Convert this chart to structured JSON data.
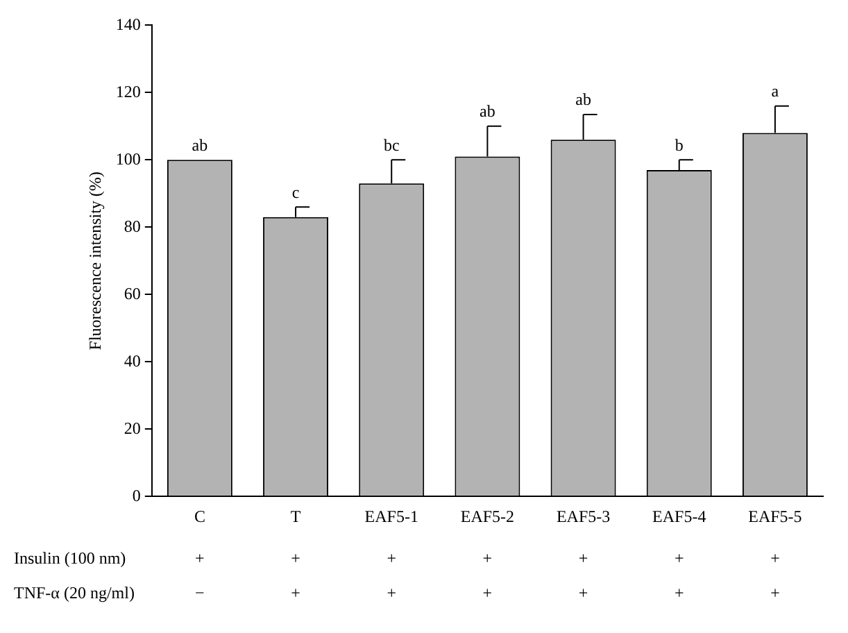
{
  "chart_data": {
    "type": "bar",
    "ylabel": "Fluorescence intensity (%)",
    "categories": [
      "C",
      "T",
      "EAF5-1",
      "EAF5-2",
      "EAF5-3",
      "EAF5-4",
      "EAF5-5"
    ],
    "values": [
      100,
      83,
      93,
      101,
      106,
      97,
      108
    ],
    "errors": [
      null,
      [
        83,
        86
      ],
      [
        93,
        100
      ],
      [
        101,
        110
      ],
      [
        106,
        113.5
      ],
      [
        97,
        100
      ],
      [
        108,
        116
      ]
    ],
    "color": "#b3b3b3",
    "ylim": [
      0,
      140
    ],
    "yticks": [
      0,
      20,
      40,
      60,
      80,
      100,
      120,
      140
    ],
    "grid": false,
    "legend": false,
    "annotations": [
      {
        "text": "ab",
        "x": "C",
        "y": 100
      },
      {
        "text": "c",
        "x": "T",
        "y": 86
      },
      {
        "text": "bc",
        "x": "EAF5-1",
        "y": 100
      },
      {
        "text": "ab",
        "x": "EAF5-2",
        "y": 110
      },
      {
        "text": "ab",
        "x": "EAF5-3",
        "y": 113.5
      },
      {
        "text": "b",
        "x": "EAF5-4",
        "y": 100
      },
      {
        "text": "a",
        "x": "EAF5-5",
        "y": 116
      },
      "Insulin (100 nm)",
      "+",
      "+",
      "+",
      "+",
      "+",
      "+",
      "+",
      "TNF-α (20 ng/ml)",
      "−",
      "+",
      "+",
      "+",
      "+",
      "+",
      "+"
    ]
  }
}
